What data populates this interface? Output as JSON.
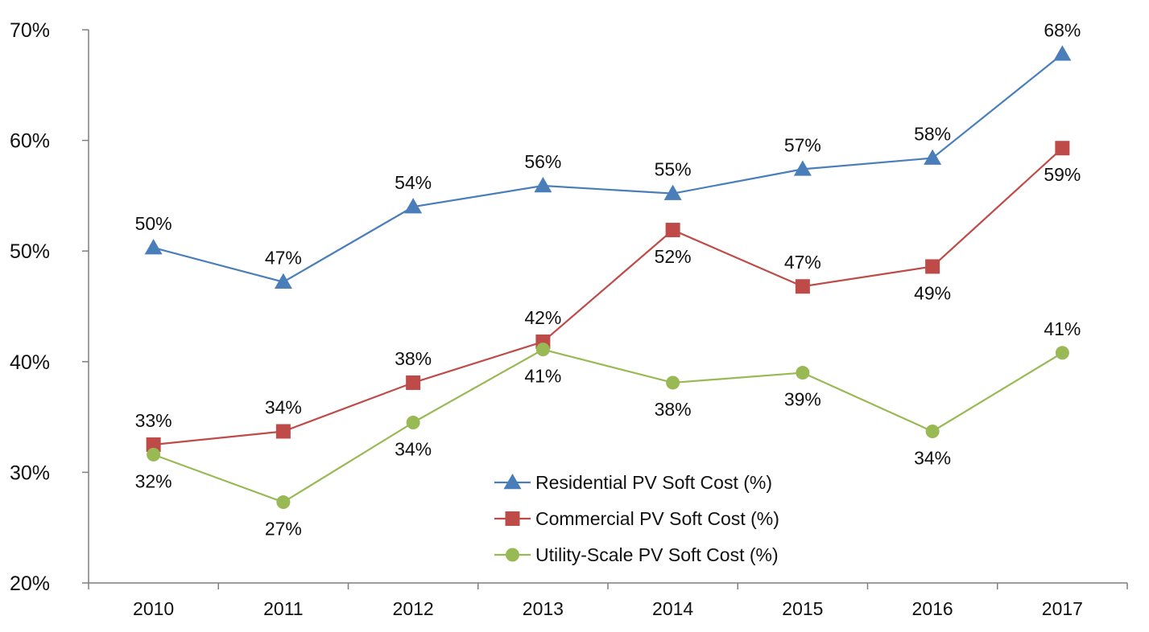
{
  "chart_data": {
    "type": "line",
    "title": "",
    "xlabel": "",
    "ylabel": "",
    "categories": [
      "2010",
      "2011",
      "2012",
      "2013",
      "2014",
      "2015",
      "2016",
      "2017"
    ],
    "ylim": [
      0.2,
      0.7
    ],
    "yticks": [
      0.2,
      0.3,
      0.4,
      0.5,
      0.6,
      0.7
    ],
    "ytick_labels": [
      "20%",
      "30%",
      "40%",
      "50%",
      "60%",
      "70%"
    ],
    "grid": false,
    "legend": "bottom-center",
    "series": [
      {
        "name": "Residential PV Soft Cost (%)",
        "color": "#4a7ebb",
        "marker": "triangle",
        "values": [
          0.503,
          0.472,
          0.54,
          0.559,
          0.552,
          0.574,
          0.584,
          0.678
        ],
        "labels": [
          "50%",
          "47%",
          "54%",
          "56%",
          "55%",
          "57%",
          "58%",
          "68%"
        ],
        "label_side": [
          "above",
          "above",
          "above",
          "above",
          "above",
          "above",
          "above",
          "above"
        ]
      },
      {
        "name": "Commercial PV Soft Cost (%)",
        "color": "#be4b48",
        "marker": "square",
        "values": [
          0.325,
          0.337,
          0.381,
          0.418,
          0.519,
          0.468,
          0.486,
          0.593
        ],
        "labels": [
          "33%",
          "34%",
          "38%",
          "42%",
          "52%",
          "47%",
          "49%",
          "59%"
        ],
        "label_side": [
          "above",
          "above",
          "above",
          "above",
          "below",
          "above",
          "below",
          "below"
        ]
      },
      {
        "name": "Utility-Scale PV Soft Cost (%)",
        "color": "#98b954",
        "marker": "circle",
        "values": [
          0.316,
          0.273,
          0.345,
          0.411,
          0.381,
          0.39,
          0.337,
          0.408
        ],
        "labels": [
          "32%",
          "27%",
          "34%",
          "41%",
          "38%",
          "39%",
          "34%",
          "41%"
        ],
        "label_side": [
          "below",
          "below",
          "below",
          "below",
          "below",
          "below",
          "below",
          "above"
        ]
      }
    ]
  }
}
